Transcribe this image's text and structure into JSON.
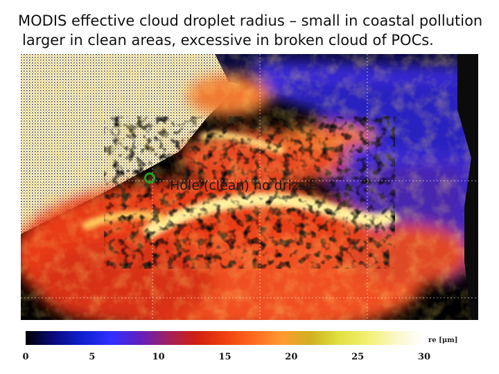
{
  "title": {
    "line1": "MODIS effective cloud droplet radius – small in coastal pollution",
    "line2": "larger in clean areas, excessive in broken cloud of POCs."
  },
  "annotation": {
    "text": "Hole (clean) no drizzle",
    "marker_color": "#1fa41f"
  },
  "colorbar": {
    "unit_label": "re [μm]",
    "range": [
      0,
      30
    ],
    "ticks": [
      {
        "label": "0",
        "value": 0
      },
      {
        "label": "5",
        "value": 5
      },
      {
        "label": "10",
        "value": 10
      },
      {
        "label": "15",
        "value": 15
      },
      {
        "label": "20",
        "value": 20
      },
      {
        "label": "25",
        "value": 25
      },
      {
        "label": "30",
        "value": 30
      }
    ],
    "stops": [
      "#000000",
      "#0a0a80",
      "#1020d0",
      "#3030ff",
      "#6020c0",
      "#a02060",
      "#d02010",
      "#f04010",
      "#ff6a20",
      "#ff9a30",
      "#d0b020",
      "#e0e040",
      "#f4f070",
      "#fbf7c8",
      "#ffffff"
    ]
  }
}
